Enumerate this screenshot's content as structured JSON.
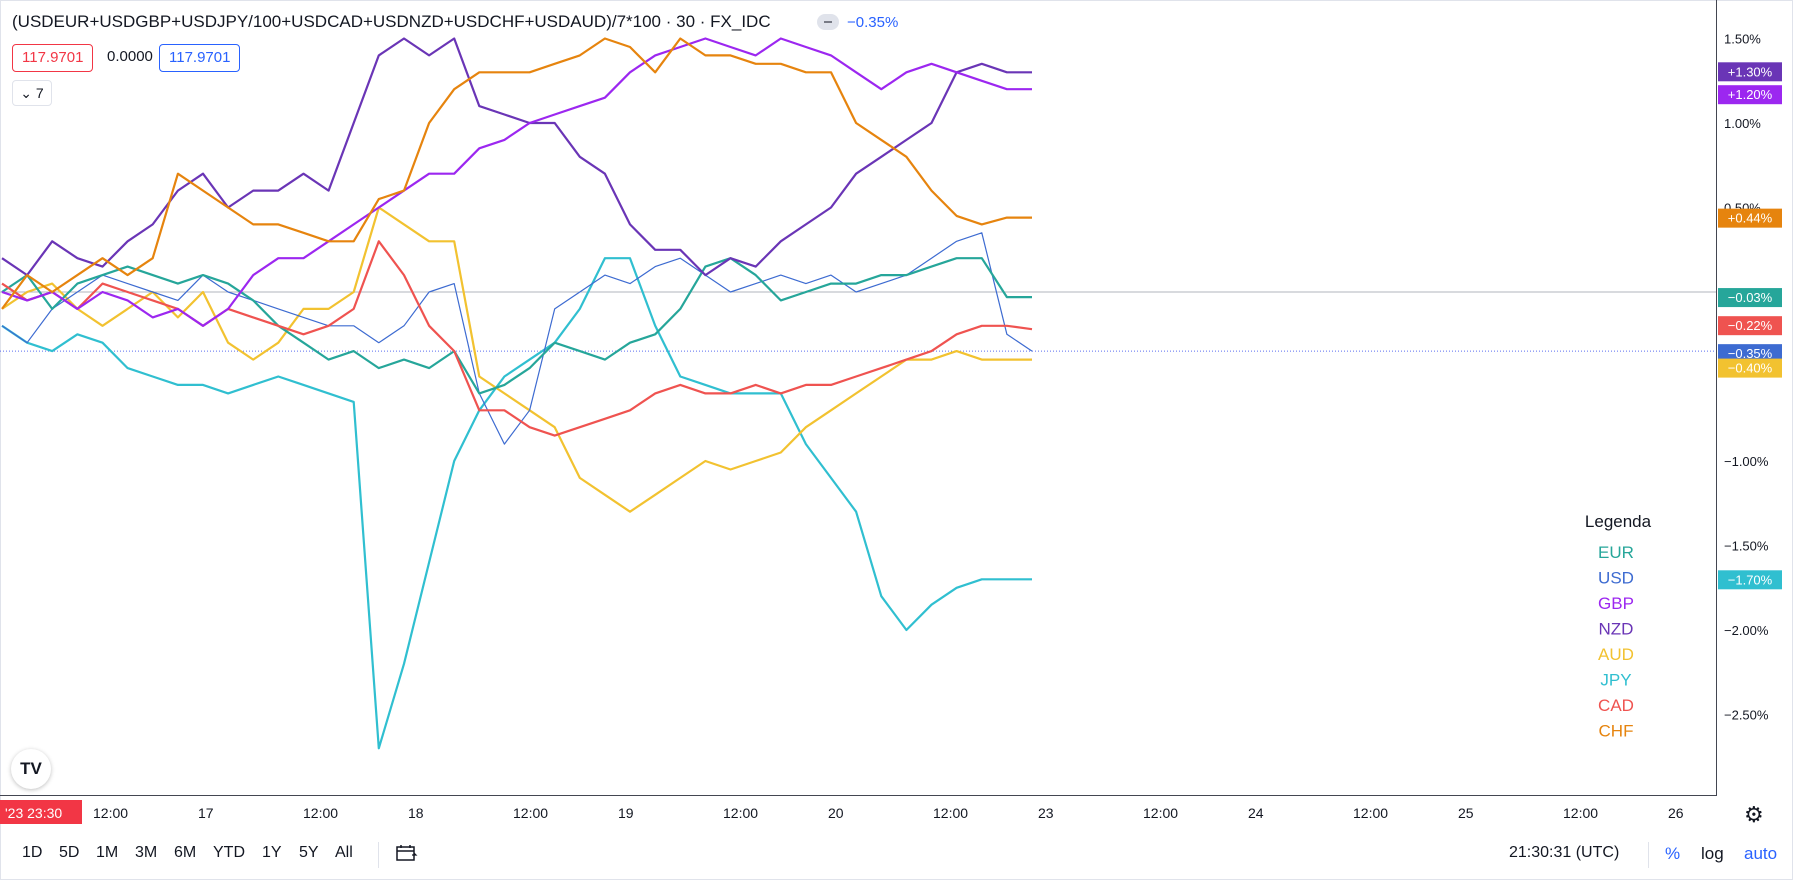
{
  "header": {
    "title": "(USDEUR+USDGBP+USDJPY/100+USDCAD+USDNZD+USDCHF+USDAUD)/7*100 · 30 · FX_IDC",
    "change": "−0.35%",
    "price_left": "117.9701",
    "price_mid": "0.0000",
    "price_right": "117.9701",
    "collapse_label": "7"
  },
  "logo_label": "TV",
  "bottom_bar": {
    "ranges": [
      "1D",
      "5D",
      "1M",
      "3M",
      "6M",
      "YTD",
      "1Y",
      "5Y",
      "All"
    ],
    "clock": "21:30:31 (UTC)",
    "pct": "%",
    "log": "log",
    "auto": "auto"
  },
  "colors": {
    "EUR": "#26a69a",
    "USD": "#3d6bd1",
    "GBP": "#9c27f0",
    "NZD": "#6a35b6",
    "AUD": "#f2c230",
    "JPY": "#30bfd0",
    "CAD": "#ef5350",
    "CHF": "#e6840e"
  },
  "chart_data": {
    "type": "line",
    "scale": "percent",
    "x_ticks": [
      "'23  23:30",
      "12:00",
      "17",
      "12:00",
      "18",
      "12:00",
      "19",
      "12:00",
      "20",
      "12:00",
      "23",
      "12:00",
      "24",
      "12:00",
      "25",
      "12:00",
      "26"
    ],
    "y_ticks": [
      "1.50%",
      "1.00%",
      "0.50%",
      "−1.00%",
      "−1.50%",
      "−2.00%",
      "−2.50%"
    ],
    "ylim": [
      -2.9,
      1.65
    ],
    "legend_title": "Legenda",
    "legend_position": "right",
    "series": [
      {
        "name": "EUR",
        "label": "−0.03%",
        "values": [
          0,
          0.1,
          -0.1,
          0.05,
          0.1,
          0.15,
          0.1,
          0.05,
          0.1,
          0.05,
          -0.05,
          -0.2,
          -0.3,
          -0.4,
          -0.35,
          -0.45,
          -0.4,
          -0.45,
          -0.35,
          -0.6,
          -0.55,
          -0.45,
          -0.3,
          -0.35,
          -0.4,
          -0.3,
          -0.25,
          -0.1,
          0.15,
          0.2,
          0.1,
          -0.05,
          0,
          0.05,
          0.05,
          0.1,
          0.1,
          0.15,
          0.2,
          0.2,
          -0.03,
          -0.03
        ]
      },
      {
        "name": "USD",
        "label": "−0.35%",
        "values": [
          -0.2,
          -0.3,
          -0.1,
          0,
          0.1,
          0.05,
          0,
          -0.05,
          0.1,
          0,
          -0.05,
          -0.1,
          -0.15,
          -0.2,
          -0.2,
          -0.3,
          -0.2,
          0,
          0.05,
          -0.6,
          -0.9,
          -0.7,
          -0.1,
          0,
          0.1,
          0.05,
          0.15,
          0.2,
          0.1,
          0,
          0.05,
          0.1,
          0.05,
          0.1,
          0,
          0.05,
          0.1,
          0.2,
          0.3,
          0.35,
          -0.25,
          -0.35
        ]
      },
      {
        "name": "GBP",
        "label": "+1.20%",
        "values": [
          0,
          -0.05,
          0,
          -0.1,
          0,
          -0.05,
          -0.15,
          -0.1,
          -0.2,
          -0.1,
          0.1,
          0.2,
          0.2,
          0.3,
          0.4,
          0.5,
          0.6,
          0.7,
          0.7,
          0.85,
          0.9,
          1.0,
          1.05,
          1.1,
          1.15,
          1.3,
          1.4,
          1.45,
          1.5,
          1.45,
          1.4,
          1.5,
          1.45,
          1.4,
          1.3,
          1.2,
          1.3,
          1.35,
          1.3,
          1.25,
          1.2,
          1.2
        ]
      },
      {
        "name": "NZD",
        "label": "+1.30%",
        "values": [
          0.2,
          0.1,
          0.3,
          0.2,
          0.15,
          0.3,
          0.4,
          0.6,
          0.7,
          0.5,
          0.6,
          0.6,
          0.7,
          0.6,
          1.0,
          1.4,
          1.5,
          1.4,
          1.5,
          1.1,
          1.05,
          1.0,
          1.0,
          0.8,
          0.7,
          0.4,
          0.25,
          0.25,
          0.1,
          0.2,
          0.15,
          0.3,
          0.4,
          0.5,
          0.7,
          0.8,
          0.9,
          1.0,
          1.3,
          1.35,
          1.3,
          1.3
        ]
      },
      {
        "name": "AUD",
        "label": "−0.40%",
        "values": [
          -0.1,
          0,
          0.05,
          -0.1,
          -0.2,
          -0.1,
          0,
          -0.15,
          0,
          -0.3,
          -0.4,
          -0.3,
          -0.1,
          -0.1,
          0,
          0.5,
          0.4,
          0.3,
          0.3,
          -0.5,
          -0.6,
          -0.7,
          -0.8,
          -1.1,
          -1.2,
          -1.3,
          -1.2,
          -1.1,
          -1.0,
          -1.05,
          -1.0,
          -0.95,
          -0.8,
          -0.7,
          -0.6,
          -0.5,
          -0.4,
          -0.4,
          -0.35,
          -0.4,
          -0.4,
          -0.4
        ]
      },
      {
        "name": "JPY",
        "label": "−1.70%",
        "values": [
          -0.2,
          -0.3,
          -0.35,
          -0.25,
          -0.3,
          -0.45,
          -0.5,
          -0.55,
          -0.55,
          -0.6,
          -0.55,
          -0.5,
          -0.55,
          -0.6,
          -0.65,
          -2.7,
          -2.2,
          -1.6,
          -1.0,
          -0.7,
          -0.5,
          -0.4,
          -0.3,
          -0.1,
          0.2,
          0.2,
          -0.2,
          -0.5,
          -0.55,
          -0.6,
          -0.6,
          -0.6,
          -0.9,
          -1.1,
          -1.3,
          -1.8,
          -2.0,
          -1.85,
          -1.75,
          -1.7,
          -1.7,
          -1.7
        ]
      },
      {
        "name": "CAD",
        "label": "−0.22%",
        "values": [
          0.05,
          -0.05,
          0,
          -0.1,
          0.05,
          0,
          -0.05,
          -0.1,
          -0.2,
          -0.1,
          -0.15,
          -0.2,
          -0.25,
          -0.2,
          -0.1,
          0.3,
          0.1,
          -0.2,
          -0.35,
          -0.7,
          -0.7,
          -0.8,
          -0.85,
          -0.8,
          -0.75,
          -0.7,
          -0.6,
          -0.55,
          -0.6,
          -0.6,
          -0.55,
          -0.6,
          -0.55,
          -0.55,
          -0.5,
          -0.45,
          -0.4,
          -0.35,
          -0.25,
          -0.2,
          -0.2,
          -0.22
        ]
      },
      {
        "name": "CHF",
        "label": "+0.44%",
        "values": [
          -0.1,
          0.1,
          0,
          0.1,
          0.2,
          0.1,
          0.2,
          0.7,
          0.6,
          0.5,
          0.4,
          0.4,
          0.35,
          0.3,
          0.3,
          0.55,
          0.6,
          1.0,
          1.2,
          1.3,
          1.3,
          1.3,
          1.35,
          1.4,
          1.5,
          1.45,
          1.3,
          1.5,
          1.4,
          1.4,
          1.35,
          1.35,
          1.3,
          1.3,
          1.0,
          0.9,
          0.8,
          0.6,
          0.45,
          0.4,
          0.44,
          0.44
        ]
      }
    ]
  }
}
